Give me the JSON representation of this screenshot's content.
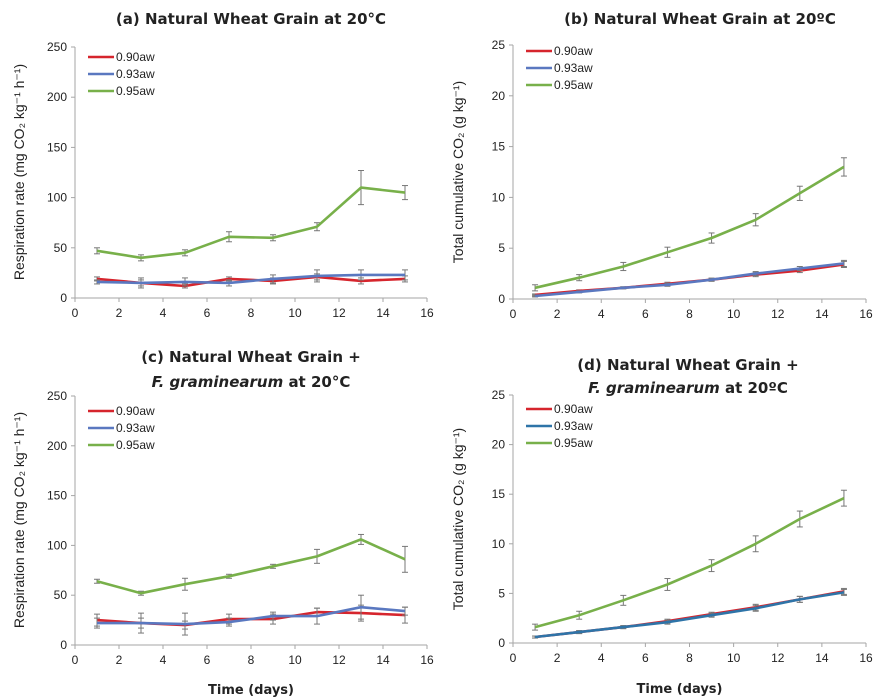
{
  "colors": {
    "aw090": "#d6252d",
    "aw093": "#5a78c0",
    "aw093_d": "#2e74a8",
    "aw095": "#78b04a",
    "axis": "#a6a6a6",
    "err": "#777777"
  },
  "chart_data": [
    {
      "panel": "a",
      "type": "line",
      "title": "(a) Natural Wheat Grain at  20°C",
      "title_line2": "",
      "xlabel": "",
      "ylabel": "Respiration rate (mg CO₂ kg⁻¹ h⁻¹)",
      "xlim": [
        0,
        16
      ],
      "ylim": [
        0,
        250
      ],
      "xticks": [
        "0",
        "2",
        "4",
        "6",
        "8",
        "10",
        "12",
        "14",
        "16"
      ],
      "yticks": [
        "0",
        "50",
        "100",
        "150",
        "200",
        "250"
      ],
      "legend_position": "top-left",
      "x": [
        1,
        3,
        5,
        7,
        9,
        11,
        13,
        15
      ],
      "series": [
        {
          "name": "0.90aw",
          "values": [
            19,
            15,
            12,
            19,
            17,
            21,
            17,
            19
          ],
          "errors": [
            2,
            3,
            2,
            2,
            3,
            3,
            3,
            3
          ]
        },
        {
          "name": "0.93aw",
          "values": [
            16,
            15,
            16,
            15,
            19,
            22,
            23,
            23
          ],
          "errors": [
            2,
            5,
            4,
            3,
            4,
            6,
            5,
            5
          ]
        },
        {
          "name": "0.95aw",
          "values": [
            47,
            40,
            45,
            61,
            60,
            71,
            110,
            105
          ],
          "errors": [
            3,
            3,
            3,
            5,
            3,
            4,
            17,
            7
          ]
        }
      ]
    },
    {
      "panel": "b",
      "type": "line",
      "title": "(b) Natural Wheat Grain at 20ºC",
      "title_line2": "",
      "xlabel": "",
      "ylabel": "Total cumulative CO₂ (g kg⁻¹)",
      "xlim": [
        0,
        16
      ],
      "ylim": [
        0,
        25
      ],
      "xticks": [
        "0",
        "2",
        "4",
        "6",
        "8",
        "10",
        "12",
        "14",
        "16"
      ],
      "yticks": [
        "0",
        "5",
        "10",
        "15",
        "20",
        "25"
      ],
      "legend_position": "top-left",
      "x": [
        1,
        3,
        5,
        7,
        9,
        11,
        13,
        15
      ],
      "series": [
        {
          "name": "0.90aw",
          "values": [
            0.4,
            0.8,
            1.1,
            1.5,
            1.9,
            2.4,
            2.8,
            3.4
          ],
          "errors": [
            0.1,
            0.1,
            0.1,
            0.15,
            0.15,
            0.2,
            0.2,
            0.3
          ]
        },
        {
          "name": "0.93aw",
          "values": [
            0.3,
            0.7,
            1.1,
            1.4,
            1.9,
            2.5,
            3.0,
            3.5
          ],
          "errors": [
            0.1,
            0.1,
            0.1,
            0.15,
            0.15,
            0.2,
            0.2,
            0.3
          ]
        },
        {
          "name": "0.95aw",
          "values": [
            1.1,
            2.1,
            3.2,
            4.6,
            6.0,
            7.8,
            10.4,
            13.0
          ],
          "errors": [
            0.3,
            0.3,
            0.4,
            0.5,
            0.5,
            0.6,
            0.7,
            0.9
          ]
        }
      ]
    },
    {
      "panel": "c",
      "type": "line",
      "title": "(c) Natural Wheat Grain +",
      "title_line2": "F. graminearum  at 20°C",
      "xlabel": "Time (days)",
      "ylabel": "Respiration rate (mg CO₂ kg⁻¹ h⁻¹)",
      "xlim": [
        0,
        16
      ],
      "ylim": [
        0,
        250
      ],
      "xticks": [
        "0",
        "2",
        "4",
        "6",
        "8",
        "10",
        "12",
        "14",
        "16"
      ],
      "yticks": [
        "0",
        "50",
        "100",
        "150",
        "200",
        "250"
      ],
      "legend_position": "top-left",
      "x": [
        1,
        3,
        5,
        7,
        9,
        11,
        13,
        15
      ],
      "series": [
        {
          "name": "0.90aw",
          "values": [
            25,
            22,
            20,
            26,
            26,
            33,
            32,
            30
          ],
          "errors": [
            6,
            5,
            4,
            5,
            5,
            4,
            8,
            8
          ]
        },
        {
          "name": "0.93aw",
          "values": [
            22,
            22,
            21,
            23,
            29,
            29,
            38,
            34
          ],
          "errors": [
            5,
            10,
            11,
            4,
            4,
            8,
            12,
            4
          ]
        },
        {
          "name": "0.95aw",
          "values": [
            64,
            52,
            61,
            69,
            79,
            89,
            106,
            86
          ],
          "errors": [
            2,
            2,
            6,
            2,
            2,
            7,
            5,
            13
          ]
        }
      ]
    },
    {
      "panel": "d",
      "type": "line",
      "title": "(d) Natural Wheat Grain +",
      "title_line2": "F. graminearum  at 20ºC",
      "xlabel": "Time (days)",
      "ylabel": "Total cumulative CO₂ (g kg⁻¹)",
      "xlim": [
        0,
        16
      ],
      "ylim": [
        0,
        25
      ],
      "xticks": [
        "0",
        "2",
        "4",
        "6",
        "8",
        "10",
        "12",
        "14",
        "16"
      ],
      "yticks": [
        "0",
        "5",
        "10",
        "15",
        "20",
        "25"
      ],
      "legend_position": "top-left",
      "x": [
        1,
        3,
        5,
        7,
        9,
        11,
        13,
        15
      ],
      "series": [
        {
          "name": "0.90aw",
          "values": [
            0.6,
            1.1,
            1.6,
            2.2,
            2.9,
            3.6,
            4.4,
            5.2
          ],
          "errors": [
            0.1,
            0.15,
            0.15,
            0.2,
            0.2,
            0.3,
            0.3,
            0.3
          ]
        },
        {
          "name": "0.93aw",
          "values": [
            0.6,
            1.1,
            1.6,
            2.1,
            2.8,
            3.5,
            4.4,
            5.1
          ],
          "errors": [
            0.1,
            0.15,
            0.15,
            0.2,
            0.2,
            0.3,
            0.3,
            0.3
          ]
        },
        {
          "name": "0.95aw",
          "values": [
            1.6,
            2.8,
            4.3,
            5.9,
            7.8,
            10.0,
            12.5,
            14.6
          ],
          "errors": [
            0.3,
            0.4,
            0.5,
            0.6,
            0.6,
            0.8,
            0.8,
            0.8
          ]
        }
      ]
    }
  ]
}
